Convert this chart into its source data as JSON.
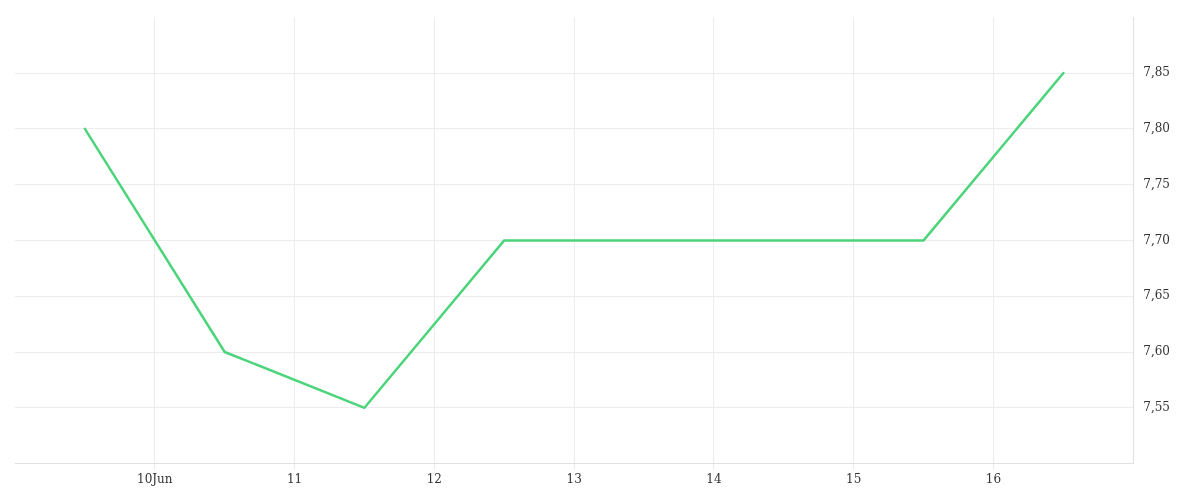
{
  "chart_data": {
    "type": "line",
    "x": [
      9.5,
      10.5,
      11.5,
      12.5,
      13.5,
      14.5,
      15.5,
      16.5
    ],
    "series": [
      {
        "color": "#4cd47a",
        "values": [
          7.8,
          7.6,
          7.55,
          7.7,
          7.7,
          7.7,
          7.7,
          7.85
        ]
      }
    ],
    "xlim": [
      9,
      17
    ],
    "xticks": [
      {
        "value": 10,
        "label": "10Jun"
      },
      {
        "value": 11,
        "label": "11"
      },
      {
        "value": 12,
        "label": "12"
      },
      {
        "value": 13,
        "label": "13"
      },
      {
        "value": 14,
        "label": "14"
      },
      {
        "value": 15,
        "label": "15"
      },
      {
        "value": 16,
        "label": "16"
      }
    ],
    "ylim": [
      7.5,
      7.9
    ],
    "yticks": [
      {
        "value": 7.55,
        "label": "7,55"
      },
      {
        "value": 7.6,
        "label": "7,60"
      },
      {
        "value": 7.65,
        "label": "7,65"
      },
      {
        "value": 7.7,
        "label": "7,70"
      },
      {
        "value": 7.75,
        "label": "7,75"
      },
      {
        "value": 7.8,
        "label": "7,80"
      },
      {
        "value": 7.85,
        "label": "7,85"
      }
    ],
    "grid": true,
    "legend": false,
    "marker": "none",
    "line_style": "solid"
  }
}
